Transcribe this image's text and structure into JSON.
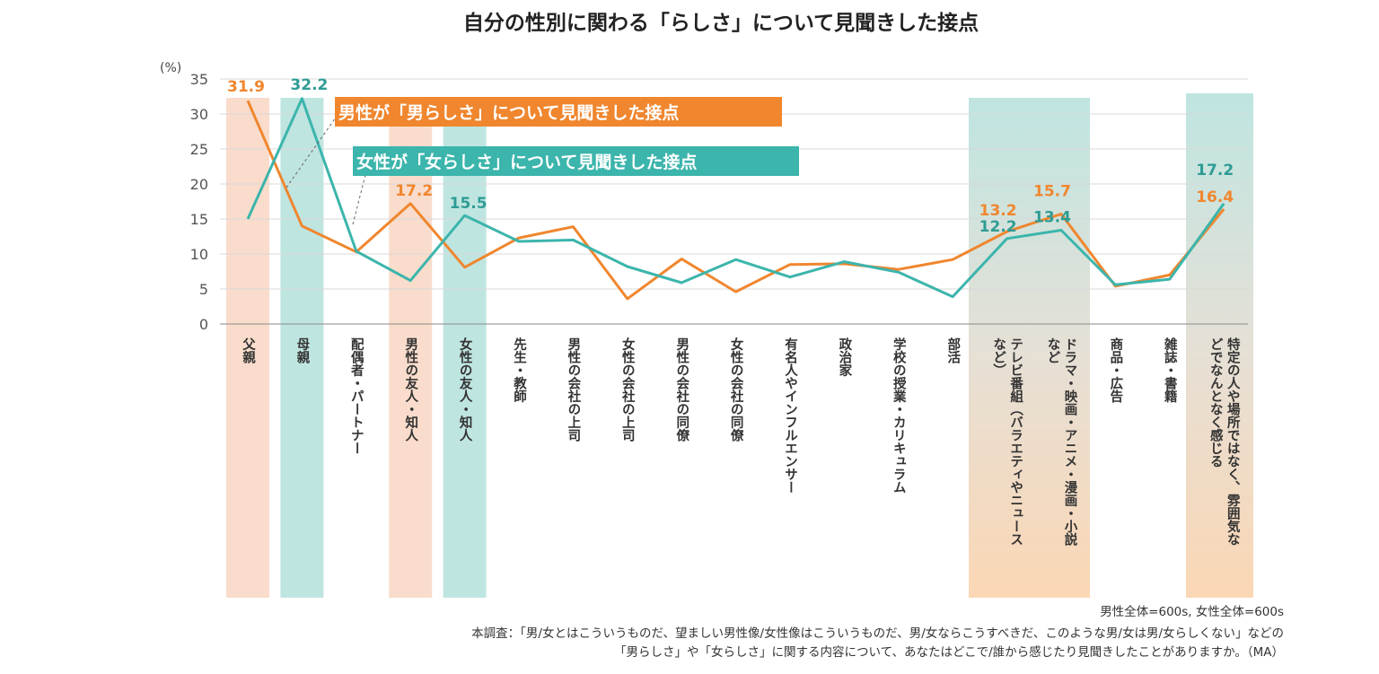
{
  "chart_data": {
    "type": "line",
    "title": "自分の性別に関わる「らしさ」について見聞きした接点",
    "ylabel": "(%)",
    "ylim": [
      0,
      35
    ],
    "yticks": [
      0,
      5,
      10,
      15,
      20,
      25,
      30,
      35
    ],
    "grid": true,
    "categories": [
      "父親",
      "母親",
      "配偶者・パートナー",
      "男性の友人・知人",
      "女性の友人・知人",
      "先生・教師",
      "男性の会社の上司",
      "女性の会社の上司",
      "男性の会社の同僚",
      "女性の会社の同僚",
      "有名人やインフルエンサー",
      "政治家",
      "学校の授業・カリキュラム",
      "部活",
      [
        "テレビ番組（バラエティやニュース",
        "など）"
      ],
      [
        "ドラマ・映画・アニメ・漫画・小説",
        "など"
      ],
      "商品・広告",
      "雑誌・書籍",
      [
        "特定の人や場所ではなく、雰囲気な",
        "どでなんとなく感じる"
      ]
    ],
    "series": [
      {
        "name": "男性が「男らしさ」について見聞きした接点",
        "color": "#F0862E",
        "values": [
          31.9,
          14.0,
          10.3,
          17.2,
          8.1,
          12.3,
          13.9,
          3.6,
          9.3,
          4.6,
          8.5,
          8.6,
          7.8,
          9.2,
          13.2,
          15.7,
          5.4,
          7.0,
          16.4
        ],
        "labels": {
          "0": "31.9",
          "3": "17.2",
          "14": "13.2",
          "15": "15.7",
          "18": "16.4"
        }
      },
      {
        "name": "女性が「女らしさ」について見聞きした接点",
        "color": "#3CB5AC",
        "values": [
          15.0,
          32.2,
          10.4,
          6.2,
          15.5,
          11.8,
          12.0,
          8.2,
          5.9,
          9.2,
          6.7,
          8.9,
          7.4,
          3.9,
          12.2,
          13.4,
          5.6,
          6.4,
          17.2
        ],
        "labels": {
          "1": "32.2",
          "4": "15.5",
          "14": "12.2",
          "15": "13.4",
          "18": "17.2"
        }
      }
    ],
    "highlights": [
      {
        "index": 0,
        "color": "#F9DCCB"
      },
      {
        "index": 1,
        "color": "#BFE5E1"
      },
      {
        "index": 3,
        "color": "#F9DCCB"
      },
      {
        "index": 4,
        "color": "#BFE5E1"
      },
      {
        "index": 14,
        "color": "mixed"
      },
      {
        "index": 15,
        "color": "mixed"
      },
      {
        "index": 18,
        "color": "mixed"
      }
    ],
    "sample_note": "男性全体=600s, 女性全体=600s",
    "footnote_lines": [
      "本調査：「男/女とはこういうものだ、望ましい男性像/女性像はこういうものだ、男/女ならこうすべきだ、このような男/女は男/女らしくない」などの",
      "「男らしさ」や「女らしさ」に関する内容について、あなたはどこで/誰から感じたり見聞きしたことがありますか。（MA）"
    ]
  }
}
